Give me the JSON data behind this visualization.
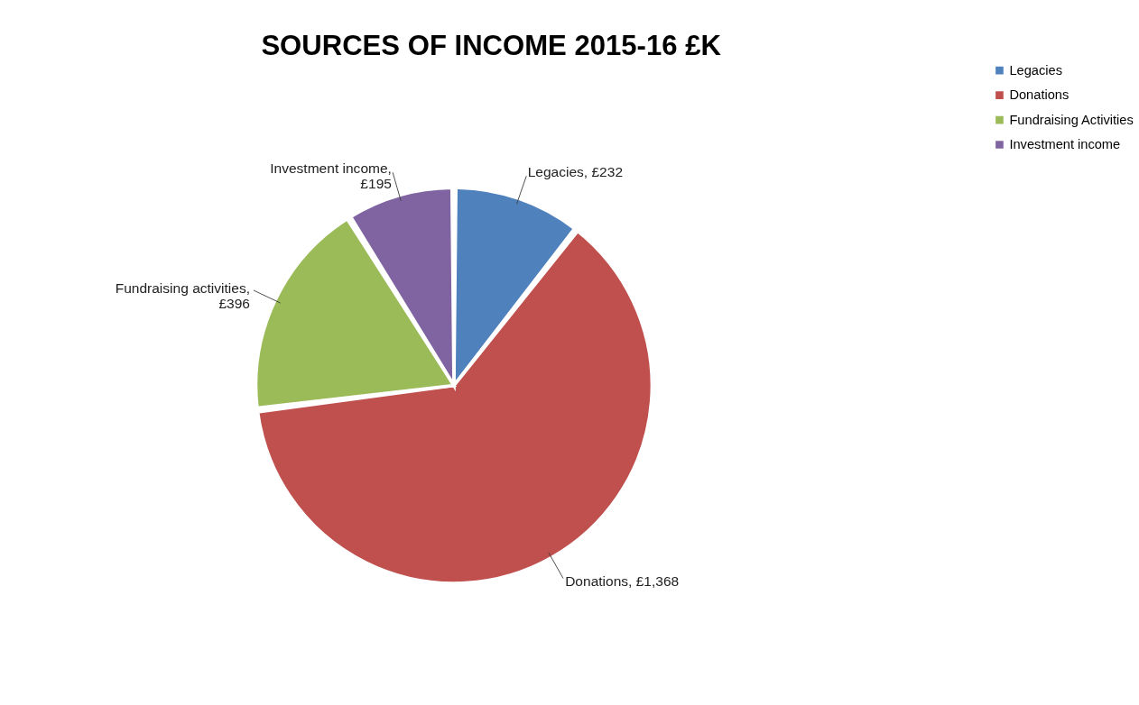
{
  "chart_data": {
    "type": "pie",
    "title": "SOURCES OF INCOME 2015-16 £K",
    "categories": [
      "Legacies",
      "Donations",
      "Fundraising Activities",
      "Investment income"
    ],
    "values": [
      232,
      1368,
      396,
      195
    ],
    "colors": [
      "#4f81bd",
      "#c0504d",
      "#9bbb59",
      "#8064a2"
    ],
    "value_labels": [
      "Legacies, £232",
      "Donations, £1,368",
      "Fundraising activities,\n£396",
      "Investment income,\n£195"
    ],
    "legend": "right"
  }
}
